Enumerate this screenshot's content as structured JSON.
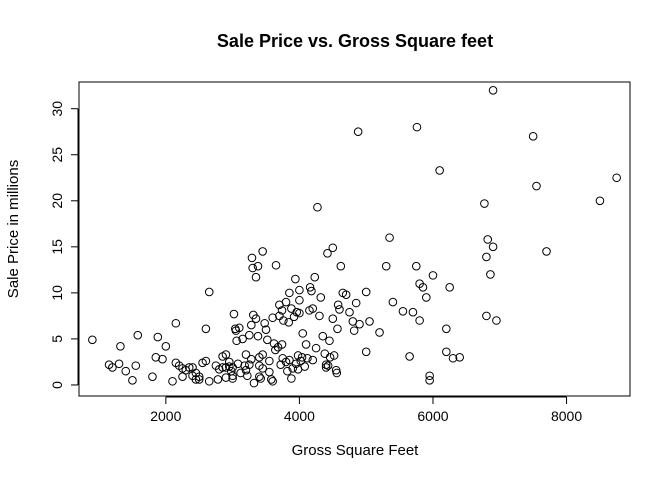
{
  "chart_data": {
    "type": "scatter",
    "title": "Sale Price vs. Gross Square feet",
    "xlabel": "Gross Square Feet",
    "ylabel": "Sale Price in millions",
    "xlim": [
      700,
      8950
    ],
    "ylim": [
      -1.2,
      32.9
    ],
    "xticks": [
      2000,
      4000,
      6000,
      8000
    ],
    "yticks": [
      0,
      5,
      10,
      15,
      20,
      25,
      30
    ],
    "grid": false,
    "legend": "none",
    "point_color": "#000000",
    "points": [
      [
        900,
        4.9
      ],
      [
        1150,
        2.2
      ],
      [
        1200,
        1.9
      ],
      [
        1300,
        2.3
      ],
      [
        1320,
        4.2
      ],
      [
        1400,
        1.5
      ],
      [
        1500,
        0.5
      ],
      [
        1550,
        2.1
      ],
      [
        1580,
        5.4
      ],
      [
        1800,
        0.9
      ],
      [
        1850,
        3.0
      ],
      [
        1880,
        5.2
      ],
      [
        1950,
        2.8
      ],
      [
        2000,
        4.2
      ],
      [
        2100,
        0.4
      ],
      [
        2150,
        2.4
      ],
      [
        2150,
        6.7
      ],
      [
        2200,
        2.1
      ],
      [
        2250,
        0.9
      ],
      [
        2250,
        1.8
      ],
      [
        2300,
        1.6
      ],
      [
        2350,
        1.9
      ],
      [
        2400,
        1.9
      ],
      [
        2400,
        1.0
      ],
      [
        2450,
        0.6
      ],
      [
        2450,
        1.3
      ],
      [
        2500,
        0.6
      ],
      [
        2500,
        0.9
      ],
      [
        2550,
        2.4
      ],
      [
        2600,
        2.6
      ],
      [
        2600,
        6.1
      ],
      [
        2650,
        10.1
      ],
      [
        2650,
        0.4
      ],
      [
        2750,
        2.1
      ],
      [
        2780,
        0.6
      ],
      [
        2800,
        1.7
      ],
      [
        2850,
        1.9
      ],
      [
        2850,
        3.1
      ],
      [
        2900,
        3.3
      ],
      [
        2900,
        1.9
      ],
      [
        2900,
        0.8
      ],
      [
        2950,
        2.0
      ],
      [
        2950,
        2.5
      ],
      [
        2980,
        1.5
      ],
      [
        3000,
        1.9
      ],
      [
        3000,
        1.0
      ],
      [
        3000,
        0.7
      ],
      [
        3020,
        7.7
      ],
      [
        3040,
        6.1
      ],
      [
        3050,
        5.9
      ],
      [
        3060,
        4.8
      ],
      [
        3080,
        2.3
      ],
      [
        3100,
        6.2
      ],
      [
        3120,
        1.3
      ],
      [
        3150,
        5.0
      ],
      [
        3180,
        2.1
      ],
      [
        3200,
        3.3
      ],
      [
        3200,
        1.6
      ],
      [
        3220,
        1.0
      ],
      [
        3250,
        2.2
      ],
      [
        3250,
        5.4
      ],
      [
        3280,
        6.5
      ],
      [
        3280,
        2.8
      ],
      [
        3290,
        13.8
      ],
      [
        3300,
        12.7
      ],
      [
        3310,
        7.6
      ],
      [
        3320,
        0.2
      ],
      [
        3350,
        7.2
      ],
      [
        3350,
        11.7
      ],
      [
        3380,
        12.9
      ],
      [
        3380,
        5.3
      ],
      [
        3400,
        3.0
      ],
      [
        3400,
        2.1
      ],
      [
        3400,
        0.9
      ],
      [
        3420,
        0.7
      ],
      [
        3450,
        1.8
      ],
      [
        3450,
        3.3
      ],
      [
        3450,
        14.5
      ],
      [
        3480,
        6.7
      ],
      [
        3500,
        6.0
      ],
      [
        3520,
        4.9
      ],
      [
        3550,
        2.6
      ],
      [
        3550,
        1.4
      ],
      [
        3580,
        0.6
      ],
      [
        3600,
        0.4
      ],
      [
        3600,
        7.3
      ],
      [
        3620,
        4.5
      ],
      [
        3640,
        3.8
      ],
      [
        3650,
        13.0
      ],
      [
        3680,
        4.1
      ],
      [
        3700,
        7.5
      ],
      [
        3700,
        8.7
      ],
      [
        3720,
        2.2
      ],
      [
        3740,
        4.4
      ],
      [
        3740,
        8.1
      ],
      [
        3750,
        2.9
      ],
      [
        3760,
        7.0
      ],
      [
        3800,
        2.5
      ],
      [
        3800,
        9.0
      ],
      [
        3820,
        1.5
      ],
      [
        3840,
        6.8
      ],
      [
        3850,
        10.0
      ],
      [
        3850,
        2.7
      ],
      [
        3880,
        8.3
      ],
      [
        3880,
        0.7
      ],
      [
        3900,
        1.8
      ],
      [
        3920,
        7.4
      ],
      [
        3940,
        11.5
      ],
      [
        3950,
        2.3
      ],
      [
        3960,
        7.9
      ],
      [
        3980,
        3.2
      ],
      [
        3980,
        1.7
      ],
      [
        4000,
        10.3
      ],
      [
        4000,
        7.8
      ],
      [
        4000,
        9.2
      ],
      [
        4020,
        2.6
      ],
      [
        4040,
        3.0
      ],
      [
        4050,
        5.6
      ],
      [
        4080,
        2.0
      ],
      [
        4100,
        4.4
      ],
      [
        4120,
        2.9
      ],
      [
        4150,
        8.1
      ],
      [
        4160,
        10.6
      ],
      [
        4180,
        10.2
      ],
      [
        4200,
        2.7
      ],
      [
        4200,
        8.3
      ],
      [
        4230,
        11.7
      ],
      [
        4250,
        4.0
      ],
      [
        4270,
        19.3
      ],
      [
        4300,
        7.5
      ],
      [
        4320,
        9.5
      ],
      [
        4350,
        5.3
      ],
      [
        4380,
        3.4
      ],
      [
        4400,
        1.9
      ],
      [
        4400,
        2.2
      ],
      [
        4420,
        14.3
      ],
      [
        4430,
        2.1
      ],
      [
        4450,
        4.8
      ],
      [
        4460,
        3.0
      ],
      [
        4500,
        14.9
      ],
      [
        4500,
        7.2
      ],
      [
        4520,
        3.2
      ],
      [
        4550,
        1.6
      ],
      [
        4560,
        1.3
      ],
      [
        4570,
        6.1
      ],
      [
        4580,
        8.7
      ],
      [
        4600,
        8.2
      ],
      [
        4620,
        12.9
      ],
      [
        4650,
        10.0
      ],
      [
        4700,
        9.8
      ],
      [
        4750,
        7.9
      ],
      [
        4800,
        6.9
      ],
      [
        4820,
        5.9
      ],
      [
        4850,
        8.9
      ],
      [
        4880,
        27.5
      ],
      [
        4900,
        6.6
      ],
      [
        5000,
        10.1
      ],
      [
        5000,
        3.6
      ],
      [
        5050,
        6.9
      ],
      [
        5200,
        5.7
      ],
      [
        5300,
        12.9
      ],
      [
        5350,
        16.0
      ],
      [
        5400,
        9.0
      ],
      [
        5550,
        8.0
      ],
      [
        5650,
        3.1
      ],
      [
        5700,
        7.9
      ],
      [
        5750,
        12.9
      ],
      [
        5760,
        28.0
      ],
      [
        5800,
        11.0
      ],
      [
        5800,
        7.0
      ],
      [
        5850,
        10.6
      ],
      [
        5900,
        9.5
      ],
      [
        5950,
        0.5
      ],
      [
        5950,
        1.0
      ],
      [
        6000,
        11.9
      ],
      [
        6100,
        23.3
      ],
      [
        6200,
        3.6
      ],
      [
        6200,
        6.1
      ],
      [
        6250,
        10.6
      ],
      [
        6300,
        2.9
      ],
      [
        6400,
        3.0
      ],
      [
        6770,
        19.7
      ],
      [
        6800,
        7.5
      ],
      [
        6800,
        13.9
      ],
      [
        6820,
        15.8
      ],
      [
        6860,
        12.0
      ],
      [
        6900,
        32.0
      ],
      [
        6900,
        15.0
      ],
      [
        6950,
        7.0
      ],
      [
        7500,
        27.0
      ],
      [
        7550,
        21.6
      ],
      [
        7700,
        14.5
      ],
      [
        8500,
        20.0
      ],
      [
        8750,
        22.5
      ]
    ]
  }
}
